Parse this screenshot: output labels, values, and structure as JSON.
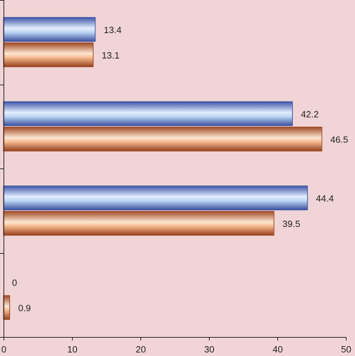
{
  "chart_data": {
    "type": "bar",
    "orientation": "horizontal",
    "title": "",
    "xlabel": "",
    "ylabel": "",
    "xlim": [
      0,
      50
    ],
    "xticks": [
      "0",
      "10",
      "20",
      "30",
      "40",
      "50"
    ],
    "grid": false,
    "legend": "none",
    "categories": [
      "",
      "",
      "",
      ""
    ],
    "series": [
      {
        "values": [
          13.4,
          42.2,
          44.4,
          0
        ],
        "labels": [
          "13.4",
          "42.2",
          "44.4",
          "0"
        ],
        "color": "#b7d2f2"
      },
      {
        "values": [
          13.1,
          46.5,
          39.5,
          0.9
        ],
        "labels": [
          "13.1",
          "46.5",
          "39.5",
          "0.9"
        ],
        "color": "#f6b88c"
      }
    ]
  },
  "colors": {
    "background": "#f1d5d6",
    "axis": "#222222",
    "blue_edge": "#3b55a8",
    "orange_edge": "#9c4a26"
  }
}
